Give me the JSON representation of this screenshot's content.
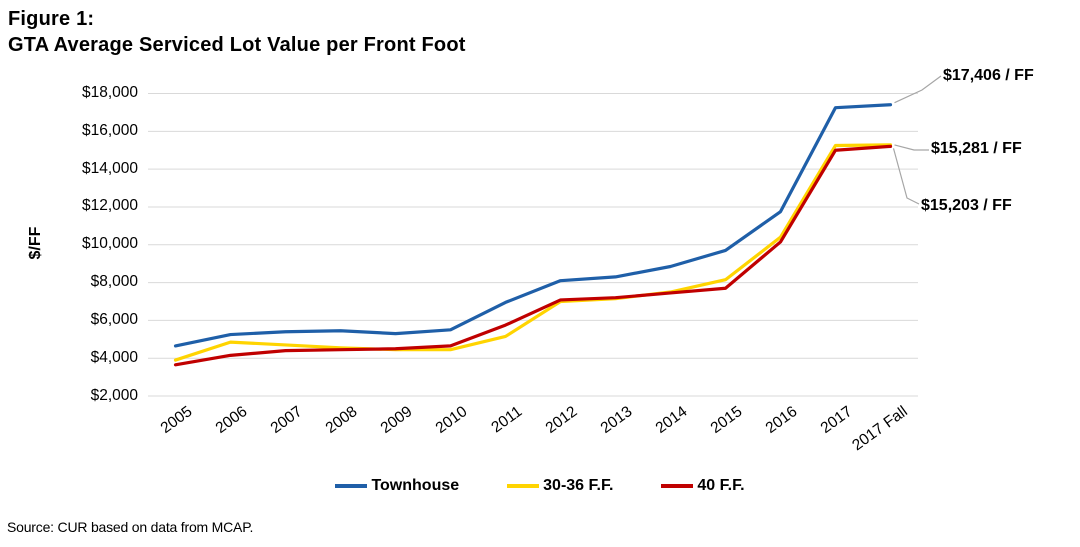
{
  "header": {
    "figure_label": "Figure 1:",
    "title": "GTA Average Serviced Lot Value per Front Foot"
  },
  "chart_data": {
    "type": "line",
    "title": "GTA Average Serviced Lot Value per Front Foot",
    "xlabel": "",
    "ylabel": "$/FF",
    "ylim": [
      2000,
      18000
    ],
    "ytick_step": 2000,
    "ytick_labels": [
      "$2,000",
      "$4,000",
      "$6,000",
      "$8,000",
      "$10,000",
      "$12,000",
      "$14,000",
      "$16,000",
      "$18,000"
    ],
    "grid": "horizontal",
    "gridline_color": "#D9D9D9",
    "leader_line_color": "#A6A6A6",
    "legend_position": "bottom",
    "categories": [
      "2005",
      "2006",
      "2007",
      "2008",
      "2009",
      "2010",
      "2011",
      "2012",
      "2013",
      "2014",
      "2015",
      "2016",
      "2017",
      "2017 Fall"
    ],
    "series": [
      {
        "name": "Townhouse",
        "color": "#1F5FA8",
        "values": [
          4650,
          5250,
          5400,
          5450,
          5300,
          5500,
          6950,
          8100,
          8300,
          8850,
          9700,
          11750,
          17250,
          17406
        ],
        "end_label": "$17,406 / FF"
      },
      {
        "name": "30-36 F.F.",
        "color": "#FFD400",
        "values": [
          3900,
          4850,
          4700,
          4550,
          4450,
          4450,
          5150,
          7000,
          7150,
          7500,
          8150,
          10400,
          15250,
          15281
        ],
        "end_label": "$15,281  / FF"
      },
      {
        "name": "40 F.F.",
        "color": "#C00000",
        "values": [
          3650,
          4150,
          4400,
          4450,
          4500,
          4650,
          5750,
          7080,
          7200,
          7450,
          7700,
          10150,
          15000,
          15203
        ],
        "end_label": "$15,203  / FF"
      }
    ]
  },
  "footer": {
    "source": "Source: CUR based on data from MCAP."
  }
}
